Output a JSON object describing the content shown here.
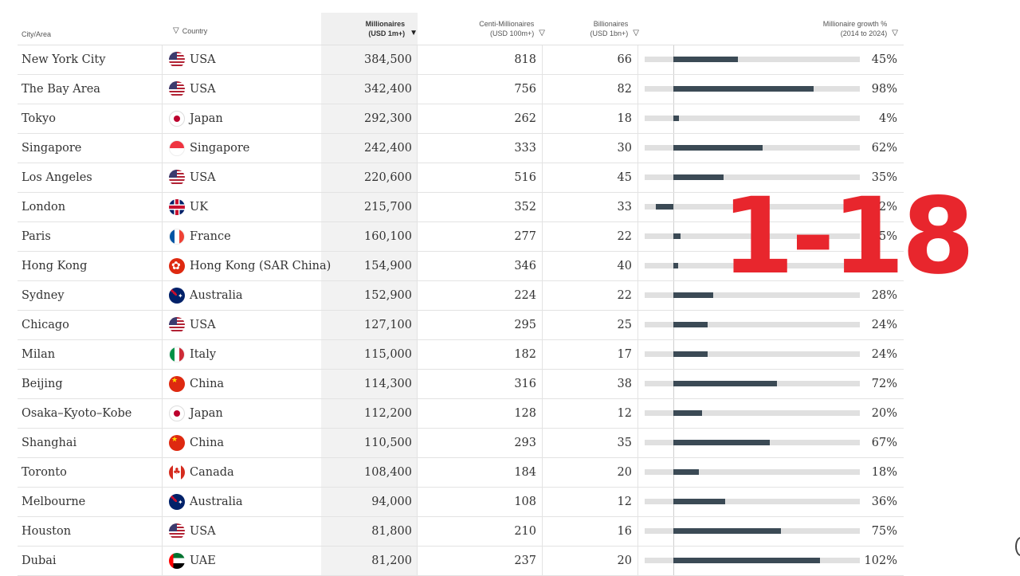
{
  "overlay_text": "1-18",
  "headers": {
    "city": "City/Area",
    "country": "Country",
    "millionaires_line1": "Millionaires",
    "millionaires_line2": "(USD 1m+)",
    "centi_line1": "Centi-Millionaires",
    "centi_line2": "(USD 100m+)",
    "billionaires_line1": "Billionaires",
    "billionaires_line2": "(USD 1bn+)",
    "growth_line1": "Millionaire growth %",
    "growth_line2": "(2014 to 2024)"
  },
  "colors": {
    "bar": "#3b4a55",
    "track": "#e0e0e0",
    "overlay": "#e8262d"
  },
  "chart_data": {
    "type": "table",
    "columns": [
      "City/Area",
      "Country",
      "Millionaires (USD 1m+)",
      "Centi-Millionaires (USD 100m+)",
      "Billionaires (USD 1bn+)",
      "Millionaire growth % (2014 to 2024)"
    ],
    "growth_axis_range": [
      -20,
      130
    ],
    "rows": [
      {
        "city": "New York City",
        "country": "USA",
        "flag": "usa",
        "millionaires": "384,500",
        "centi": "818",
        "billionaires": "66",
        "growth": 45,
        "growth_label": "45%"
      },
      {
        "city": "The Bay Area",
        "country": "USA",
        "flag": "usa",
        "millionaires": "342,400",
        "centi": "756",
        "billionaires": "82",
        "growth": 98,
        "growth_label": "98%"
      },
      {
        "city": "Tokyo",
        "country": "Japan",
        "flag": "japan",
        "millionaires": "292,300",
        "centi": "262",
        "billionaires": "18",
        "growth": 4,
        "growth_label": "4%"
      },
      {
        "city": "Singapore",
        "country": "Singapore",
        "flag": "singapore",
        "millionaires": "242,400",
        "centi": "333",
        "billionaires": "30",
        "growth": 62,
        "growth_label": "62%"
      },
      {
        "city": "Los Angeles",
        "country": "USA",
        "flag": "usa",
        "millionaires": "220,600",
        "centi": "516",
        "billionaires": "45",
        "growth": 35,
        "growth_label": "35%"
      },
      {
        "city": "London",
        "country": "UK",
        "flag": "uk",
        "millionaires": "215,700",
        "centi": "352",
        "billionaires": "33",
        "growth": -12,
        "growth_label": "-12%"
      },
      {
        "city": "Paris",
        "country": "France",
        "flag": "france",
        "millionaires": "160,100",
        "centi": "277",
        "billionaires": "22",
        "growth": 5,
        "growth_label": "5%"
      },
      {
        "city": "Hong Kong",
        "country": "Hong Kong (SAR China)",
        "flag": "hk",
        "millionaires": "154,900",
        "centi": "346",
        "billionaires": "40",
        "growth": 3,
        "growth_label": "3%"
      },
      {
        "city": "Sydney",
        "country": "Australia",
        "flag": "australia",
        "millionaires": "152,900",
        "centi": "224",
        "billionaires": "22",
        "growth": 28,
        "growth_label": "28%"
      },
      {
        "city": "Chicago",
        "country": "USA",
        "flag": "usa",
        "millionaires": "127,100",
        "centi": "295",
        "billionaires": "25",
        "growth": 24,
        "growth_label": "24%"
      },
      {
        "city": "Milan",
        "country": "Italy",
        "flag": "italy",
        "millionaires": "115,000",
        "centi": "182",
        "billionaires": "17",
        "growth": 24,
        "growth_label": "24%"
      },
      {
        "city": "Beijing",
        "country": "China",
        "flag": "china",
        "millionaires": "114,300",
        "centi": "316",
        "billionaires": "38",
        "growth": 72,
        "growth_label": "72%"
      },
      {
        "city": "Osaka–Kyoto–Kobe",
        "country": "Japan",
        "flag": "japan",
        "millionaires": "112,200",
        "centi": "128",
        "billionaires": "12",
        "growth": 20,
        "growth_label": "20%"
      },
      {
        "city": "Shanghai",
        "country": "China",
        "flag": "china",
        "millionaires": "110,500",
        "centi": "293",
        "billionaires": "35",
        "growth": 67,
        "growth_label": "67%"
      },
      {
        "city": "Toronto",
        "country": "Canada",
        "flag": "canada",
        "millionaires": "108,400",
        "centi": "184",
        "billionaires": "20",
        "growth": 18,
        "growth_label": "18%"
      },
      {
        "city": "Melbourne",
        "country": "Australia",
        "flag": "australia",
        "millionaires": "94,000",
        "centi": "108",
        "billionaires": "12",
        "growth": 36,
        "growth_label": "36%"
      },
      {
        "city": "Houston",
        "country": "USA",
        "flag": "usa",
        "millionaires": "81,800",
        "centi": "210",
        "billionaires": "16",
        "growth": 75,
        "growth_label": "75%"
      },
      {
        "city": "Dubai",
        "country": "UAE",
        "flag": "uae",
        "millionaires": "81,200",
        "centi": "237",
        "billionaires": "20",
        "growth": 102,
        "growth_label": "102%"
      }
    ]
  }
}
